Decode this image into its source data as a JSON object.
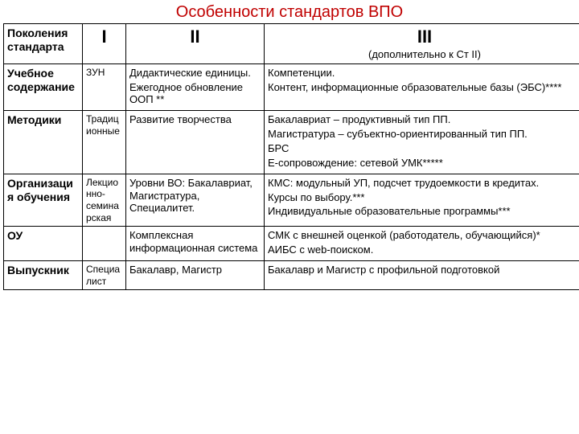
{
  "title": "Особенности стандартов ВПО",
  "colors": {
    "title": "#c00000",
    "border": "#000000",
    "text": "#000000",
    "background": "#ffffff"
  },
  "header": {
    "rowlabel": "Поколения стандарта",
    "col1": "I",
    "col2": "II",
    "col3": "III",
    "col3sub": "(дополнительно к Ст II)"
  },
  "rows": [
    {
      "label": "Учебное содержание",
      "c1": "ЗУН",
      "c2": "Дидактические единицы.\nЕжегодное обновление ООП **",
      "c3": "Компетенции.\nКонтент, информационные образовательные базы (ЭБС)****"
    },
    {
      "label": "Методики",
      "c1": "Традиционные",
      "c2": "Развитие творчества",
      "c3": "Бакалавриат – продуктивный тип ПП.\nМагистратура – субъектно-ориентированный тип ПП.\nБРС\nЕ-сопровождение: сетевой УМК*****"
    },
    {
      "label": "Организация обучения",
      "c1": "Лекционно-семинарская",
      "c2": "Уровни ВО: Бакалавриат, Магистратура, Специалитет.",
      "c3": "КМС: модульный УП, подсчет трудоемкости в кредитах.\nКурсы по выбору.***\nИндивидуальные образовательные программы***"
    },
    {
      "label": "ОУ",
      "c1": "",
      "c2": "Комплексная информационная система",
      "c3": "СМК с внешней оценкой (работодатель, обучающийся)*\nАИБС с web-поиском."
    },
    {
      "label": "Выпускник",
      "c1": "Специалист",
      "c2": "Бакалавр, Магистр",
      "c3": "Бакалавр и Магистр с профильной подготовкой"
    }
  ]
}
